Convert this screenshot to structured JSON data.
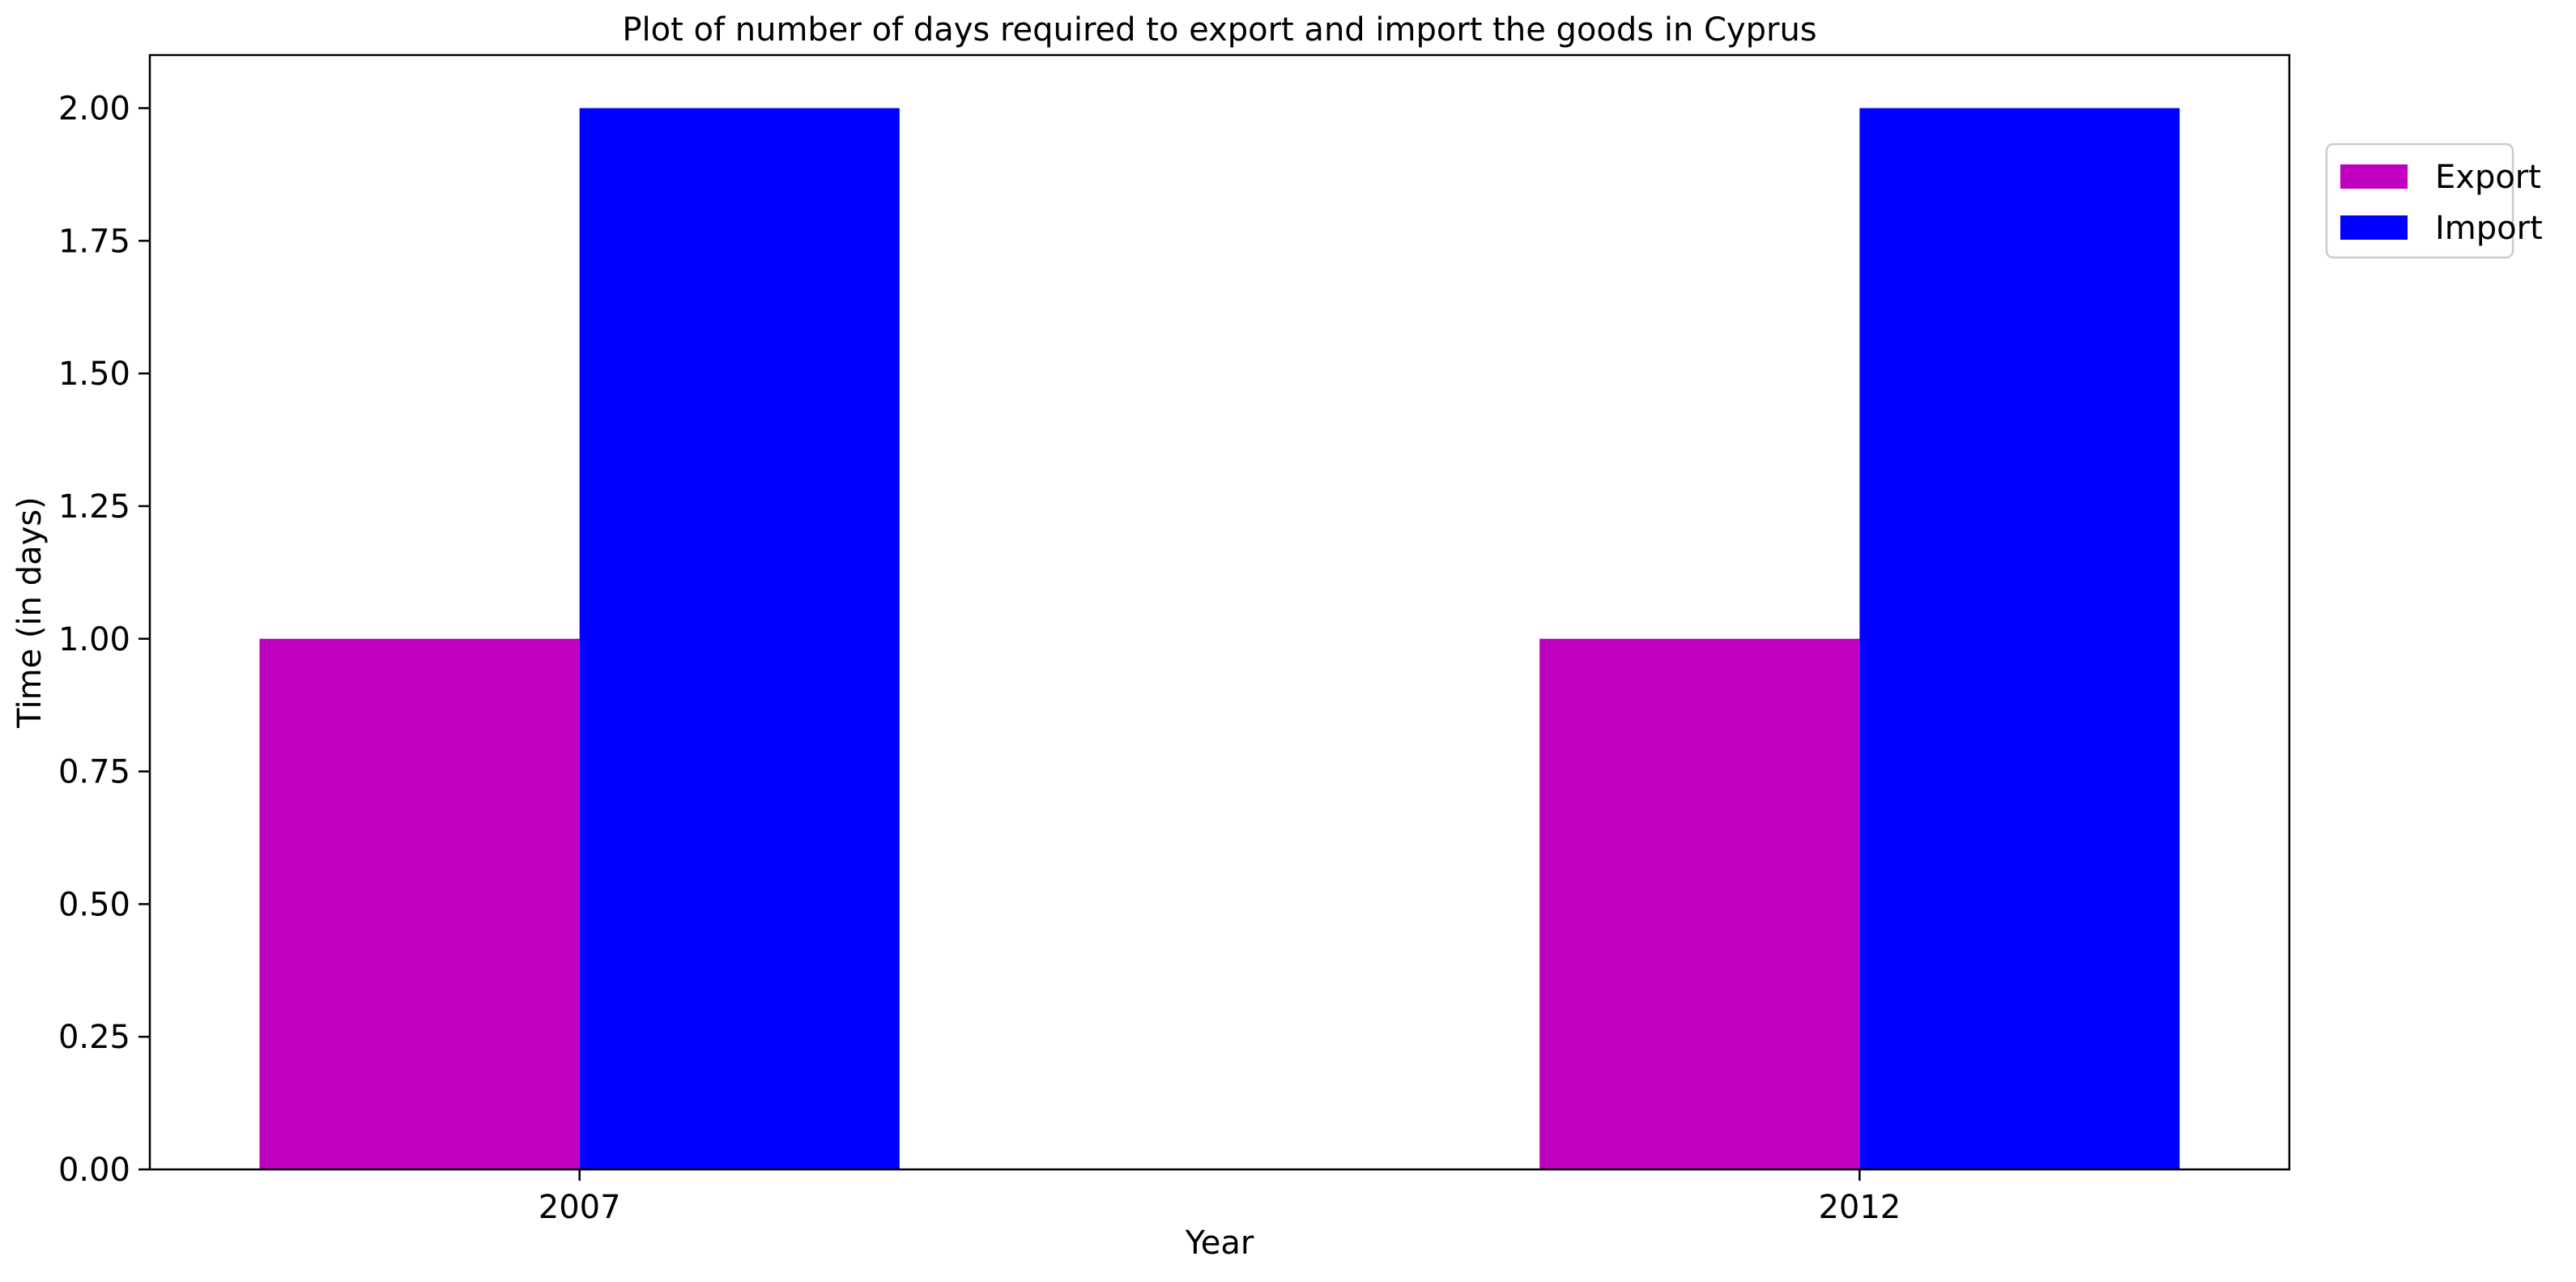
{
  "chart_data": {
    "type": "bar",
    "title": "Plot of number of days required to export and import the goods in Cyprus",
    "xlabel": "Year",
    "ylabel": "Time (in days)",
    "categories": [
      "2007",
      "2012"
    ],
    "series": [
      {
        "name": "Export",
        "values": [
          1,
          1
        ],
        "color": "#bf00bf"
      },
      {
        "name": "Import",
        "values": [
          2,
          2
        ],
        "color": "#0000ff"
      }
    ],
    "ylim": [
      0,
      2.1
    ],
    "yticks": [
      "0.00",
      "0.25",
      "0.50",
      "0.75",
      "1.00",
      "1.25",
      "1.50",
      "1.75",
      "2.00"
    ],
    "grid": false,
    "legend_position": "outside top-right"
  }
}
